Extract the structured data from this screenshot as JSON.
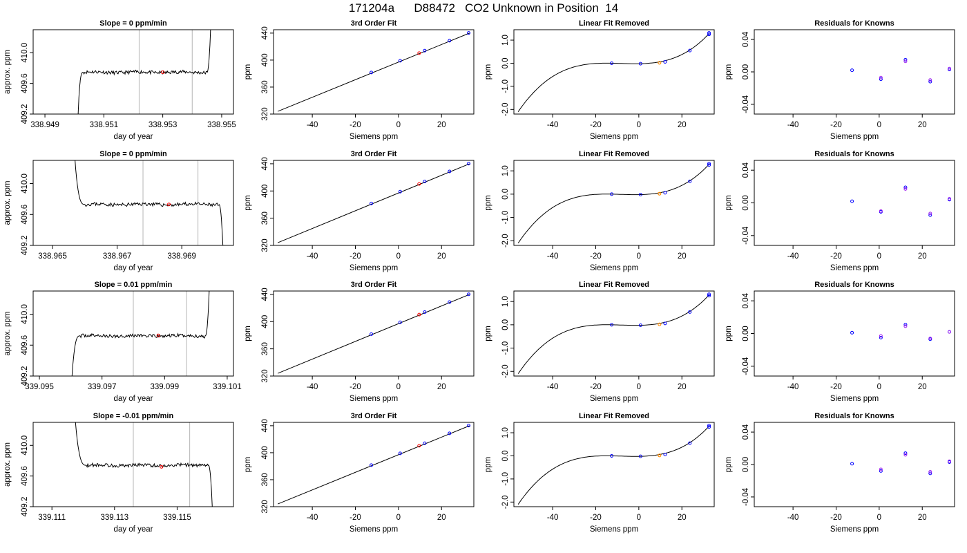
{
  "page_title": "171204a      D88472   CO2 Unknown in Position  14",
  "colors": {
    "line": "#000000",
    "sample_point": "#ff0000",
    "known_point": "#0000ff",
    "unknown_point": "#ff8c00",
    "residual_point_a": "#0000ff",
    "residual_point_b": "#a020f0",
    "marker_line": "#c0c0c0"
  },
  "chart_data": [
    {
      "row": 1,
      "panel": "timeseries",
      "type": "line",
      "title": "Slope =  0  ppm/min",
      "xlabel": "day of year",
      "ylabel": "approx. ppm",
      "xlim": [
        338.9486,
        338.9554
      ],
      "ylim": [
        409.2,
        410.3
      ],
      "xticks": [
        "338.949",
        "338.951",
        "338.953",
        "338.955"
      ],
      "xtick_values": [
        338.949,
        338.951,
        338.953,
        338.955
      ],
      "yticks": [
        "409.2",
        "409.6",
        "410.0"
      ],
      "ytick_values": [
        409.2,
        409.6,
        410.0
      ],
      "marker_lines": [
        338.9522,
        338.954
      ],
      "sample_point": {
        "x": 338.953,
        "y": 409.745
      },
      "profile": {
        "start": 338.9501,
        "rise_end": 338.9503,
        "flat_end": 338.9545,
        "end": 338.95465,
        "level": 409.745,
        "start_dir": "below",
        "end_dir": "above",
        "seed": 11
      }
    },
    {
      "row": 1,
      "panel": "fit",
      "type": "scatter",
      "title": "3rd Order Fit",
      "xlabel": "Siemens ppm",
      "ylabel": "ppm",
      "xlim": [
        -58,
        35
      ],
      "ylim": [
        320,
        445
      ],
      "xticks": [
        "-40",
        "-20",
        "0",
        "20"
      ],
      "xtick_values": [
        -40,
        -20,
        0,
        20
      ],
      "yticks": [
        "320",
        "360",
        "400",
        "440"
      ],
      "ytick_values": [
        320,
        360,
        400,
        440
      ],
      "line": {
        "x": [
          -56,
          33
        ],
        "y": [
          324,
          440
        ]
      },
      "knowns": [
        [
          -12.6,
          381.6
        ],
        [
          0.8,
          399
        ],
        [
          12.2,
          414
        ],
        [
          23.7,
          428.7
        ],
        [
          32.6,
          440.2
        ]
      ],
      "unknown": [
        9.6,
        410.3
      ]
    },
    {
      "row": 1,
      "panel": "linear_removed",
      "type": "line",
      "title": "Linear Fit Removed",
      "xlabel": "Siemens ppm",
      "ylabel": "ppm",
      "xlim": [
        -58,
        35
      ],
      "ylim": [
        -2.2,
        1.45
      ],
      "xticks": [
        "-40",
        "-20",
        "0",
        "20"
      ],
      "xtick_values": [
        -40,
        -20,
        0,
        20
      ],
      "yticks": [
        "-2.0",
        "-1.0",
        "0.0",
        "1.0"
      ],
      "ytick_values": [
        -2.0,
        -1.0,
        0.0,
        1.0
      ],
      "knowns": [
        [
          -12.6,
          0.0
        ],
        [
          0.8,
          -0.02
        ],
        [
          12.2,
          0.06
        ],
        [
          23.7,
          0.55
        ],
        [
          32.6,
          1.25
        ],
        [
          32.6,
          1.31
        ]
      ],
      "unknown": [
        9.6,
        0.02
      ]
    },
    {
      "row": 1,
      "panel": "residuals",
      "type": "scatter",
      "title": "Residuals for Knowns",
      "xlabel": "Siemens ppm",
      "ylabel": "ppm",
      "xlim": [
        -58,
        35
      ],
      "ylim": [
        -0.052,
        0.052
      ],
      "xticks": [
        "-40",
        "-20",
        "0",
        "20"
      ],
      "xtick_values": [
        -40,
        -20,
        0,
        20
      ],
      "yticks": [
        "-0.04",
        "0.00",
        "0.04"
      ],
      "ytick_values": [
        -0.04,
        0.0,
        0.04
      ],
      "points_a": [
        [
          -12.6,
          0.002
        ],
        [
          0.8,
          -0.009
        ],
        [
          12.2,
          0.015
        ],
        [
          23.7,
          -0.012
        ],
        [
          32.6,
          0.003
        ]
      ],
      "points_b": [
        [
          0.8,
          -0.007
        ],
        [
          12.2,
          0.013
        ],
        [
          23.7,
          -0.01
        ],
        [
          32.6,
          0.004
        ]
      ]
    },
    {
      "row": 2,
      "panel": "timeseries",
      "type": "line",
      "title": "Slope =  0  ppm/min",
      "xlabel": "day of year",
      "ylabel": "approx. ppm",
      "xlim": [
        338.9644,
        338.9706
      ],
      "ylim": [
        409.2,
        410.3
      ],
      "xticks": [
        "338.965",
        "338.967",
        "338.969"
      ],
      "xtick_values": [
        338.965,
        338.967,
        338.969
      ],
      "yticks": [
        "409.2",
        "409.6",
        "410.0"
      ],
      "ytick_values": [
        409.2,
        409.6,
        410.0
      ],
      "marker_lines": [
        338.9678,
        338.9695
      ],
      "sample_point": {
        "x": 338.9686,
        "y": 409.73
      },
      "profile": {
        "start": 338.96565,
        "rise_end": 338.966,
        "flat_end": 338.97015,
        "end": 338.9703,
        "level": 409.73,
        "start_dir": "above",
        "end_dir": "below",
        "seed": 23
      }
    },
    {
      "row": 2,
      "panel": "fit",
      "type": "scatter",
      "title": "3rd Order Fit",
      "xlabel": "Siemens ppm",
      "ylabel": "ppm",
      "xlim": [
        -58,
        35
      ],
      "ylim": [
        320,
        445
      ],
      "xticks": [
        "-40",
        "-20",
        "0",
        "20"
      ],
      "xtick_values": [
        -40,
        -20,
        0,
        20
      ],
      "yticks": [
        "320",
        "360",
        "400",
        "440"
      ],
      "ytick_values": [
        320,
        360,
        400,
        440
      ],
      "line": {
        "x": [
          -56,
          33
        ],
        "y": [
          324,
          440
        ]
      },
      "knowns": [
        [
          -12.6,
          381.6
        ],
        [
          0.8,
          399
        ],
        [
          12.2,
          414
        ],
        [
          23.7,
          428.7
        ],
        [
          32.6,
          440.2
        ]
      ],
      "unknown": [
        9.6,
        410.3
      ]
    },
    {
      "row": 2,
      "panel": "linear_removed",
      "type": "line",
      "title": "Linear Fit Removed",
      "xlabel": "Siemens ppm",
      "ylabel": "ppm",
      "xlim": [
        -58,
        35
      ],
      "ylim": [
        -2.2,
        1.45
      ],
      "xticks": [
        "-40",
        "-20",
        "0",
        "20"
      ],
      "xtick_values": [
        -40,
        -20,
        0,
        20
      ],
      "yticks": [
        "-2.0",
        "-1.0",
        "0.0",
        "1.0"
      ],
      "ytick_values": [
        -2.0,
        -1.0,
        0.0,
        1.0
      ],
      "knowns": [
        [
          -12.6,
          0.0
        ],
        [
          0.8,
          -0.02
        ],
        [
          12.2,
          0.06
        ],
        [
          23.7,
          0.55
        ],
        [
          32.6,
          1.25
        ],
        [
          32.6,
          1.31
        ]
      ],
      "unknown": [
        9.6,
        0.02
      ]
    },
    {
      "row": 2,
      "panel": "residuals",
      "type": "scatter",
      "title": "Residuals for Knowns",
      "xlabel": "Siemens ppm",
      "ylabel": "ppm",
      "xlim": [
        -58,
        35
      ],
      "ylim": [
        -0.052,
        0.052
      ],
      "xticks": [
        "-40",
        "-20",
        "0",
        "20"
      ],
      "xtick_values": [
        -40,
        -20,
        0,
        20
      ],
      "yticks": [
        "-0.04",
        "0.00",
        "0.04"
      ],
      "ytick_values": [
        -0.04,
        0.0,
        0.04
      ],
      "points_a": [
        [
          -12.6,
          0.002
        ],
        [
          0.8,
          -0.011
        ],
        [
          12.2,
          0.019
        ],
        [
          23.7,
          -0.015
        ],
        [
          32.6,
          0.004
        ]
      ],
      "points_b": [
        [
          0.8,
          -0.01
        ],
        [
          12.2,
          0.017
        ],
        [
          23.7,
          -0.013
        ],
        [
          32.6,
          0.005
        ]
      ]
    },
    {
      "row": 3,
      "panel": "timeseries",
      "type": "line",
      "title": "Slope =  0.01  ppm/min",
      "xlabel": "day of year",
      "ylabel": "approx. ppm",
      "xlim": [
        339.0948,
        339.1012
      ],
      "ylim": [
        409.2,
        410.3
      ],
      "xticks": [
        "339.095",
        "339.097",
        "339.099",
        "339.101"
      ],
      "xtick_values": [
        339.095,
        339.097,
        339.099,
        339.101
      ],
      "yticks": [
        "409.2",
        "409.6",
        "410.0"
      ],
      "ytick_values": [
        409.2,
        409.6,
        410.0
      ],
      "marker_lines": [
        339.098,
        339.0997
      ],
      "sample_point": {
        "x": 339.0988,
        "y": 409.725
      },
      "profile": {
        "start": 339.096,
        "rise_end": 339.0963,
        "flat_end": 339.1003,
        "end": 339.10045,
        "level": 409.72,
        "start_dir": "below",
        "end_dir": "above",
        "seed": 37
      }
    },
    {
      "row": 3,
      "panel": "fit",
      "type": "scatter",
      "title": "3rd Order Fit",
      "xlabel": "Siemens ppm",
      "ylabel": "ppm",
      "xlim": [
        -58,
        35
      ],
      "ylim": [
        320,
        445
      ],
      "xticks": [
        "-40",
        "-20",
        "0",
        "20"
      ],
      "xtick_values": [
        -40,
        -20,
        0,
        20
      ],
      "yticks": [
        "320",
        "360",
        "400",
        "440"
      ],
      "ytick_values": [
        320,
        360,
        400,
        440
      ],
      "line": {
        "x": [
          -56,
          33
        ],
        "y": [
          324,
          440
        ]
      },
      "knowns": [
        [
          -12.6,
          381.6
        ],
        [
          0.8,
          399
        ],
        [
          12.2,
          414
        ],
        [
          23.7,
          428.7
        ],
        [
          32.6,
          440.2
        ]
      ],
      "unknown": [
        9.6,
        410.3
      ]
    },
    {
      "row": 3,
      "panel": "linear_removed",
      "type": "line",
      "title": "Linear Fit Removed",
      "xlabel": "Siemens ppm",
      "ylabel": "ppm",
      "xlim": [
        -58,
        35
      ],
      "ylim": [
        -2.2,
        1.45
      ],
      "xticks": [
        "-40",
        "-20",
        "0",
        "20"
      ],
      "xtick_values": [
        -40,
        -20,
        0,
        20
      ],
      "yticks": [
        "-2.0",
        "-1.0",
        "0.0",
        "1.0"
      ],
      "ytick_values": [
        -2.0,
        -1.0,
        0.0,
        1.0
      ],
      "knowns": [
        [
          -12.6,
          0.0
        ],
        [
          0.8,
          -0.02
        ],
        [
          12.2,
          0.06
        ],
        [
          23.7,
          0.55
        ],
        [
          32.6,
          1.25
        ],
        [
          32.6,
          1.31
        ]
      ],
      "unknown": [
        9.6,
        0.02
      ]
    },
    {
      "row": 3,
      "panel": "residuals",
      "type": "scatter",
      "title": "Residuals for Knowns",
      "xlabel": "Siemens ppm",
      "ylabel": "ppm",
      "xlim": [
        -58,
        35
      ],
      "ylim": [
        -0.052,
        0.052
      ],
      "xticks": [
        "-40",
        "-20",
        "0",
        "20"
      ],
      "xtick_values": [
        -40,
        -20,
        0,
        20
      ],
      "yticks": [
        "-0.04",
        "0.00",
        "0.04"
      ],
      "ytick_values": [
        -0.04,
        0.0,
        0.04
      ],
      "points_a": [
        [
          -12.6,
          0.001
        ],
        [
          0.8,
          -0.005
        ],
        [
          12.2,
          0.011
        ],
        [
          23.7,
          -0.007
        ],
        [
          32.6,
          0.002
        ]
      ],
      "points_b": [
        [
          0.8,
          -0.003
        ],
        [
          12.2,
          0.009
        ],
        [
          23.7,
          -0.006
        ],
        [
          32.6,
          0.002
        ]
      ]
    },
    {
      "row": 4,
      "panel": "timeseries",
      "type": "line",
      "title": "Slope =  -0.01  ppm/min",
      "xlabel": "day of year",
      "ylabel": "approx. ppm",
      "xlim": [
        339.1104,
        339.1168
      ],
      "ylim": [
        409.2,
        410.3
      ],
      "xticks": [
        "339.111",
        "339.113",
        "339.115"
      ],
      "xtick_values": [
        339.111,
        339.113,
        339.115
      ],
      "yticks": [
        "409.2",
        "409.6",
        "410.0"
      ],
      "ytick_values": [
        409.2,
        409.6,
        410.0
      ],
      "marker_lines": [
        339.1136,
        339.1154
      ],
      "sample_point": {
        "x": 339.1145,
        "y": 409.72
      },
      "profile": {
        "start": 339.1117,
        "rise_end": 339.1121,
        "flat_end": 339.116,
        "end": 339.11615,
        "level": 409.74,
        "start_dir": "above",
        "end_dir": "below",
        "seed": 53
      }
    },
    {
      "row": 4,
      "panel": "fit",
      "type": "scatter",
      "title": "3rd Order Fit",
      "xlabel": "Siemens ppm",
      "ylabel": "ppm",
      "xlim": [
        -58,
        35
      ],
      "ylim": [
        320,
        445
      ],
      "xticks": [
        "-40",
        "-20",
        "0",
        "20"
      ],
      "xtick_values": [
        -40,
        -20,
        0,
        20
      ],
      "yticks": [
        "320",
        "360",
        "400",
        "440"
      ],
      "ytick_values": [
        320,
        360,
        400,
        440
      ],
      "line": {
        "x": [
          -56,
          33
        ],
        "y": [
          324,
          440
        ]
      },
      "knowns": [
        [
          -12.6,
          381.6
        ],
        [
          0.8,
          399
        ],
        [
          12.2,
          414
        ],
        [
          23.7,
          428.7
        ],
        [
          32.6,
          440.2
        ]
      ],
      "unknown": [
        9.6,
        410.3
      ]
    },
    {
      "row": 4,
      "panel": "linear_removed",
      "type": "line",
      "title": "Linear Fit Removed",
      "xlabel": "Siemens ppm",
      "ylabel": "ppm",
      "xlim": [
        -58,
        35
      ],
      "ylim": [
        -2.2,
        1.45
      ],
      "xticks": [
        "-40",
        "-20",
        "0",
        "20"
      ],
      "xtick_values": [
        -40,
        -20,
        0,
        20
      ],
      "yticks": [
        "-2.0",
        "-1.0",
        "0.0",
        "1.0"
      ],
      "ytick_values": [
        -2.0,
        -1.0,
        0.0,
        1.0
      ],
      "knowns": [
        [
          -12.6,
          0.0
        ],
        [
          0.8,
          -0.02
        ],
        [
          12.2,
          0.06
        ],
        [
          23.7,
          0.55
        ],
        [
          32.6,
          1.25
        ],
        [
          32.6,
          1.31
        ]
      ],
      "unknown": [
        9.6,
        0.02
      ]
    },
    {
      "row": 4,
      "panel": "residuals",
      "type": "scatter",
      "title": "Residuals for Knowns",
      "xlabel": "Siemens ppm",
      "ylabel": "ppm",
      "xlim": [
        -58,
        35
      ],
      "ylim": [
        -0.052,
        0.052
      ],
      "xticks": [
        "-40",
        "-20",
        "0",
        "20"
      ],
      "xtick_values": [
        -40,
        -20,
        0,
        20
      ],
      "yticks": [
        "-0.04",
        "0.00",
        "0.04"
      ],
      "ytick_values": [
        -0.04,
        0.0,
        0.04
      ],
      "points_a": [
        [
          -12.6,
          0.001
        ],
        [
          0.8,
          -0.008
        ],
        [
          12.2,
          0.014
        ],
        [
          23.7,
          -0.011
        ],
        [
          32.6,
          0.003
        ]
      ],
      "points_b": [
        [
          0.8,
          -0.006
        ],
        [
          12.2,
          0.012
        ],
        [
          23.7,
          -0.009
        ],
        [
          32.6,
          0.004
        ]
      ]
    }
  ]
}
